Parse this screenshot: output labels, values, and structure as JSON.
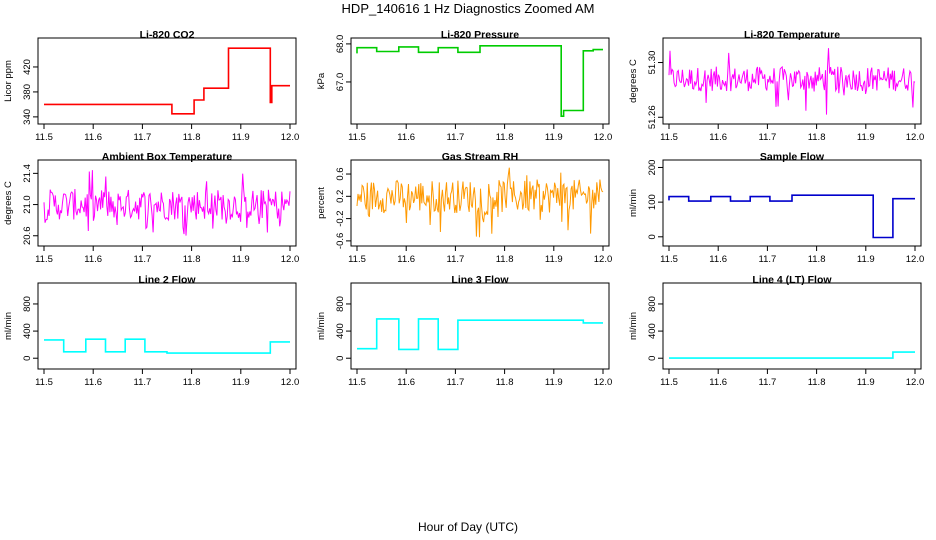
{
  "figure": {
    "title": "HDP_140616  1 Hz Diagnostics Zoomed AM",
    "xlabel": "Hour of Day (UTC)"
  },
  "chart_data": [
    {
      "type": "line",
      "title": "Li-820 CO2",
      "ylabel": "Licor ppm",
      "color": "#ff0000",
      "xlim": [
        11.5,
        12.0
      ],
      "ylim": [
        335,
        460
      ],
      "xticks": [
        "11.5",
        "11.6",
        "11.7",
        "11.8",
        "11.9",
        "12.0"
      ],
      "yticks": [
        "340",
        "380",
        "420"
      ],
      "series": [
        {
          "x": [
            11.5,
            11.76,
            11.76,
            11.805,
            11.805,
            11.825,
            11.825,
            11.875,
            11.875,
            11.96,
            11.96,
            11.963,
            11.963,
            12.0
          ],
          "y": [
            360,
            360,
            345,
            345,
            367,
            367,
            386,
            386,
            450,
            450,
            363,
            363,
            390,
            390
          ]
        }
      ]
    },
    {
      "type": "line",
      "title": "Li-820 Pressure",
      "ylabel": "kPa",
      "color": "#00cc00",
      "xlim": [
        11.5,
        12.0
      ],
      "ylim": [
        66.0,
        68.05
      ],
      "xticks": [
        "11.5",
        "11.6",
        "11.7",
        "11.8",
        "11.9",
        "12.0"
      ],
      "yticks": [
        "67.0",
        "68.0"
      ],
      "series": [
        {
          "x": [
            11.5,
            11.5,
            11.54,
            11.54,
            11.585,
            11.585,
            11.625,
            11.625,
            11.665,
            11.665,
            11.705,
            11.705,
            11.75,
            11.75,
            11.915,
            11.915,
            11.92,
            11.92,
            11.96,
            11.96,
            11.98,
            11.98,
            12.0
          ],
          "y": [
            67.75,
            67.9,
            67.9,
            67.8,
            67.8,
            67.92,
            67.92,
            67.78,
            67.78,
            67.9,
            67.9,
            67.78,
            67.78,
            67.95,
            67.95,
            66.1,
            66.1,
            66.25,
            66.25,
            67.82,
            67.82,
            67.85,
            67.85
          ]
        }
      ]
    },
    {
      "type": "line",
      "title": "Li-820 Temperature",
      "ylabel": "degrees C",
      "color": "#ff00ff",
      "xlim": [
        11.5,
        12.0
      ],
      "ylim": [
        51.258,
        51.315
      ],
      "xticks": [
        "11.5",
        "11.6",
        "11.7",
        "11.8",
        "11.9",
        "12.0"
      ],
      "yticks": [
        "51.26",
        "51.30"
      ],
      "series": [
        {
          "x": [
            11.5,
            12.0
          ],
          "band": [
            51.279,
            51.297
          ],
          "spike_low": 51.26,
          "spike_high": 51.314
        }
      ]
    },
    {
      "type": "line",
      "title": "Ambient Box Temperature",
      "ylabel": "degrees C",
      "color": "#ff00ff",
      "xlim": [
        11.5,
        12.0
      ],
      "ylim": [
        20.52,
        21.52
      ],
      "xticks": [
        "11.5",
        "11.6",
        "11.7",
        "11.8",
        "11.9",
        "12.0"
      ],
      "yticks": [
        "20.6",
        "21.0",
        "21.4"
      ],
      "series": [
        {
          "x": [
            11.5,
            12.0
          ],
          "band": [
            20.8,
            21.2
          ],
          "spike_low": 20.6,
          "spike_high": 21.45
        }
      ]
    },
    {
      "type": "line",
      "title": "Gas Stream RH",
      "ylabel": "percent",
      "color": "#ff9900",
      "xlim": [
        11.5,
        12.0
      ],
      "ylim": [
        -0.62,
        0.78
      ],
      "xticks": [
        "11.5",
        "11.6",
        "11.7",
        "11.8",
        "11.9",
        "12.0"
      ],
      "yticks": [
        "-0.6",
        "-0.2",
        "0.2",
        "0.6"
      ],
      "series": [
        {
          "x": [
            11.5,
            12.0
          ],
          "band": [
            -0.1,
            0.5
          ],
          "spike_low": -0.55,
          "spike_high": 0.72
        }
      ]
    },
    {
      "type": "line",
      "title": "Sample Flow",
      "ylabel": "ml/min",
      "color": "#0000cc",
      "xlim": [
        11.5,
        12.0
      ],
      "ylim": [
        -15,
        210
      ],
      "xticks": [
        "11.5",
        "11.6",
        "11.7",
        "11.8",
        "11.9",
        "12.0"
      ],
      "yticks": [
        "0",
        "100",
        "200"
      ],
      "series": [
        {
          "x": [
            11.5,
            11.5,
            11.54,
            11.54,
            11.585,
            11.585,
            11.625,
            11.625,
            11.665,
            11.665,
            11.705,
            11.705,
            11.75,
            11.75,
            11.915,
            11.915,
            11.955,
            11.955,
            12.0
          ],
          "y": [
            105,
            116,
            116,
            103,
            103,
            116,
            116,
            103,
            103,
            116,
            116,
            103,
            103,
            120,
            120,
            -2,
            -2,
            110,
            110
          ]
        }
      ]
    },
    {
      "type": "line",
      "title": "Line 2 Flow",
      "ylabel": "ml/min",
      "color": "#00ffff",
      "xlim": [
        11.5,
        12.0
      ],
      "ylim": [
        -100,
        1050
      ],
      "xticks": [
        "11.5",
        "11.6",
        "11.7",
        "11.8",
        "11.9",
        "12.0"
      ],
      "yticks": [
        "0",
        "400",
        "800"
      ],
      "series": [
        {
          "x": [
            11.5,
            11.54,
            11.54,
            11.585,
            11.585,
            11.625,
            11.625,
            11.665,
            11.665,
            11.705,
            11.705,
            11.75,
            11.75,
            11.96,
            11.96,
            12.0
          ],
          "y": [
            270,
            270,
            95,
            95,
            280,
            280,
            95,
            95,
            280,
            280,
            95,
            95,
            75,
            75,
            240,
            240
          ]
        }
      ]
    },
    {
      "type": "line",
      "title": "Line 3 Flow",
      "ylabel": "ml/min",
      "color": "#00ffff",
      "xlim": [
        11.5,
        12.0
      ],
      "ylim": [
        -100,
        1050
      ],
      "xticks": [
        "11.5",
        "11.6",
        "11.7",
        "11.8",
        "11.9",
        "12.0"
      ],
      "yticks": [
        "0",
        "400",
        "800"
      ],
      "series": [
        {
          "x": [
            11.5,
            11.54,
            11.54,
            11.585,
            11.585,
            11.625,
            11.625,
            11.665,
            11.665,
            11.705,
            11.705,
            11.96,
            11.96,
            12.0
          ],
          "y": [
            140,
            140,
            580,
            580,
            130,
            130,
            580,
            580,
            130,
            130,
            560,
            560,
            520,
            520
          ]
        }
      ]
    },
    {
      "type": "line",
      "title": "Line 4 (LT) Flow",
      "ylabel": "ml/min",
      "color": "#00ffff",
      "xlim": [
        11.5,
        12.0
      ],
      "ylim": [
        -100,
        1050
      ],
      "xticks": [
        "11.5",
        "11.6",
        "11.7",
        "11.8",
        "11.9",
        "12.0"
      ],
      "yticks": [
        "0",
        "400",
        "800"
      ],
      "series": [
        {
          "x": [
            11.5,
            11.955,
            11.955,
            12.0
          ],
          "y": [
            2,
            2,
            90,
            90
          ]
        }
      ]
    }
  ]
}
